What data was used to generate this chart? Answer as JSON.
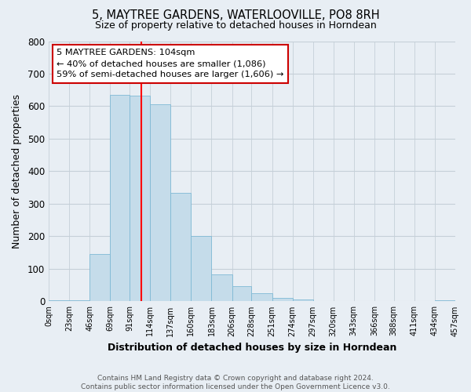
{
  "title": "5, MAYTREE GARDENS, WATERLOOVILLE, PO8 8RH",
  "subtitle": "Size of property relative to detached houses in Horndean",
  "xlabel": "Distribution of detached houses by size in Horndean",
  "ylabel": "Number of detached properties",
  "bar_color": "#c5dcea",
  "bar_edge_color": "#7fb9d5",
  "bin_edges": [
    0,
    23,
    46,
    69,
    91,
    114,
    137,
    160,
    183,
    206,
    228,
    251,
    274,
    297,
    320,
    343,
    366,
    388,
    411,
    434,
    457
  ],
  "bar_heights": [
    3,
    3,
    145,
    635,
    632,
    607,
    333,
    200,
    83,
    46,
    26,
    11,
    5,
    0,
    0,
    0,
    0,
    0,
    0,
    3
  ],
  "tick_labels": [
    "0sqm",
    "23sqm",
    "46sqm",
    "69sqm",
    "91sqm",
    "114sqm",
    "137sqm",
    "160sqm",
    "183sqm",
    "206sqm",
    "228sqm",
    "251sqm",
    "274sqm",
    "297sqm",
    "320sqm",
    "343sqm",
    "366sqm",
    "388sqm",
    "411sqm",
    "434sqm",
    "457sqm"
  ],
  "ylim": [
    0,
    800
  ],
  "yticks": [
    0,
    100,
    200,
    300,
    400,
    500,
    600,
    700,
    800
  ],
  "red_line_x": 104,
  "annotation_line1": "5 MAYTREE GARDENS: 104sqm",
  "annotation_line2": "← 40% of detached houses are smaller (1,086)",
  "annotation_line3": "59% of semi-detached houses are larger (1,606) →",
  "annotation_box_color": "#ffffff",
  "annotation_box_edge": "#cc0000",
  "footer_text": "Contains HM Land Registry data © Crown copyright and database right 2024.\nContains public sector information licensed under the Open Government Licence v3.0.",
  "background_color": "#e8eef4",
  "plot_bg_color": "#e8eef4",
  "grid_color": "#c5cfd8"
}
